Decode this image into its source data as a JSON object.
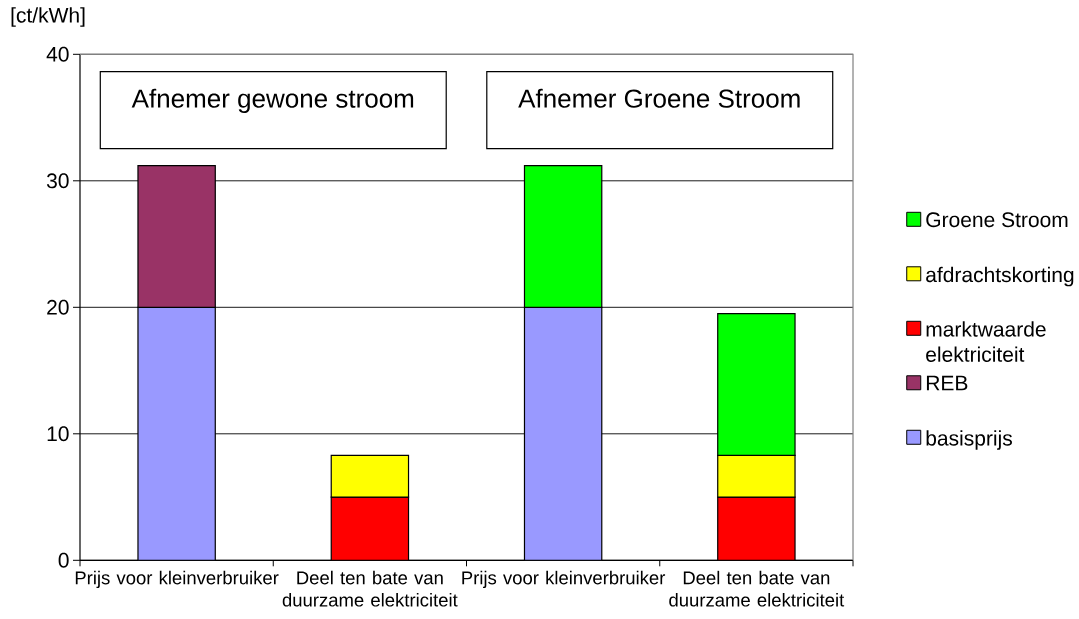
{
  "chart_data": {
    "type": "bar",
    "stacked": true,
    "ylabel": "[ct/kWh]",
    "categories": [
      "Prijs voor kleinverbruiker",
      "Deel ten bate van duurzame elektriciteit",
      "Prijs voor kleinverbruiker",
      "Deel ten bate van duurzame elektriciteit"
    ],
    "series": [
      {
        "name": "basisprijs",
        "color": "#9999ff",
        "values": [
          20,
          null,
          20,
          null
        ]
      },
      {
        "name": "REB",
        "color": "#993366",
        "values": [
          11.2,
          null,
          null,
          null
        ]
      },
      {
        "name": "marktwaarde elektriciteit",
        "color": "#ff0000",
        "values": [
          null,
          5,
          null,
          5
        ]
      },
      {
        "name": "afdrachtskorting",
        "color": "#ffff00",
        "values": [
          null,
          3.3,
          null,
          3.3
        ]
      },
      {
        "name": "Groene Stroom",
        "color": "#00ff00",
        "values": [
          null,
          null,
          11.2,
          11.2
        ]
      }
    ],
    "ylim": [
      0,
      40
    ],
    "yticks": [
      0,
      10,
      20,
      30,
      40
    ],
    "grid": "y",
    "legend": "right",
    "annotations": [
      "Afnemer gewone stroom",
      "Afnemer Groene Stroom"
    ]
  }
}
